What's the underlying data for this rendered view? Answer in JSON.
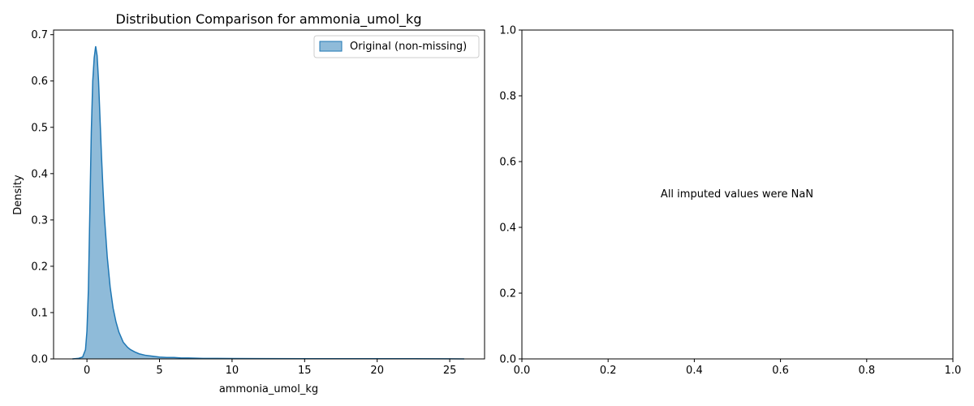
{
  "chart_data": [
    {
      "type": "area",
      "title": "Distribution Comparison for ammonia_umol_kg",
      "xlabel": "ammonia_umol_kg",
      "ylabel": "Density",
      "xlim": [
        -2.3,
        27.4
      ],
      "ylim": [
        0,
        0.71
      ],
      "xticks": [
        0,
        5,
        10,
        15,
        20,
        25
      ],
      "yticks": [
        0.0,
        0.1,
        0.2,
        0.3,
        0.4,
        0.5,
        0.6,
        0.7
      ],
      "xtick_labels": [
        "0",
        "5",
        "10",
        "15",
        "20",
        "25"
      ],
      "ytick_labels": [
        "0.0",
        "0.1",
        "0.2",
        "0.3",
        "0.4",
        "0.5",
        "0.6",
        "0.7"
      ],
      "legend": {
        "placement": "top-right",
        "entries": [
          "Original (non-missing)"
        ]
      },
      "grid": false,
      "colors": {
        "line": "#1f77b4",
        "fill": "#1f77b4",
        "fill_opacity": 0.5
      },
      "series": [
        {
          "name": "Original (non-missing)",
          "x": [
            -1.0,
            -0.6,
            -0.3,
            -0.1,
            0.0,
            0.1,
            0.2,
            0.3,
            0.4,
            0.5,
            0.6,
            0.7,
            0.8,
            0.9,
            1.0,
            1.1,
            1.2,
            1.4,
            1.6,
            1.8,
            2.0,
            2.2,
            2.5,
            2.8,
            3.0,
            3.3,
            3.6,
            4.0,
            4.5,
            5.0,
            5.5,
            6.0,
            6.5,
            7.0,
            8.0,
            9.0,
            10.0,
            12.0,
            15.0,
            20.0,
            25.0,
            26.0
          ],
          "y": [
            0.0,
            0.001,
            0.004,
            0.02,
            0.06,
            0.15,
            0.32,
            0.49,
            0.6,
            0.65,
            0.675,
            0.655,
            0.6,
            0.52,
            0.44,
            0.37,
            0.31,
            0.22,
            0.155,
            0.11,
            0.08,
            0.058,
            0.036,
            0.025,
            0.02,
            0.015,
            0.011,
            0.008,
            0.006,
            0.004,
            0.003,
            0.003,
            0.002,
            0.002,
            0.001,
            0.001,
            0.0008,
            0.0006,
            0.0005,
            0.0004,
            0.0003,
            0.0
          ]
        }
      ]
    },
    {
      "type": "scatter",
      "title": "",
      "xlabel": "",
      "ylabel": "",
      "xlim": [
        0,
        1
      ],
      "ylim": [
        0,
        1
      ],
      "xticks": [
        0.0,
        0.2,
        0.4,
        0.6,
        0.8,
        1.0
      ],
      "yticks": [
        0.0,
        0.2,
        0.4,
        0.6,
        0.8,
        1.0
      ],
      "xtick_labels": [
        "0.0",
        "0.2",
        "0.4",
        "0.6",
        "0.8",
        "1.0"
      ],
      "ytick_labels": [
        "0.0",
        "0.2",
        "0.4",
        "0.6",
        "0.8",
        "1.0"
      ],
      "annotation": "All imputed values were NaN",
      "series": []
    }
  ]
}
